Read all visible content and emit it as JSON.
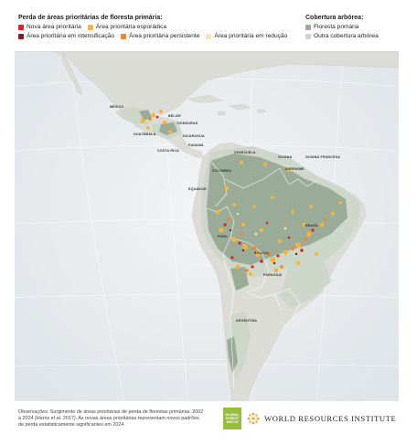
{
  "legend": {
    "loss_title": "Perda de áreas prioritárias de floresta primária:",
    "loss_items": [
      {
        "label": "Nova área prioritária",
        "color": "#e0202a"
      },
      {
        "label": "Área prioritária esporádica",
        "color": "#f5b53c"
      },
      {
        "label": "Área prioritária em intensificação",
        "color": "#8b1a1a"
      },
      {
        "label": "Área prioritária persistente",
        "color": "#f0852a"
      },
      {
        "label": "Área prioritária em redução",
        "color": "#fbe3b4"
      }
    ],
    "cover_title": "Cobertura arbórea:",
    "cover_items": [
      {
        "label": "Floresta primária",
        "color": "#9aab98"
      },
      {
        "label": "Outra cobertura arbórea",
        "color": "#ccd6c9"
      }
    ]
  },
  "map": {
    "labels": {
      "mexico": "MÉXICO",
      "belize": "BELIZE",
      "honduras": "HONDURAS",
      "guatemala": "GUATEMALA",
      "nicaragua": "NICARAGUA",
      "panama": "PANAMÁ",
      "costa_rica": "COSTA RICA",
      "venezuela": "VENEZUELA",
      "guiana": "GUIANA",
      "guiana_francesa": "GUIANA FRANCESA",
      "suriname": "SURINAME",
      "colombia": "COLÔMBIA",
      "equador": "EQUADOR",
      "brasil": "BRASIL",
      "peru": "PERU",
      "bolivia": "BOLÍVIA",
      "paraguai": "PARAGUAI",
      "argentina": "ARGENTINA"
    }
  },
  "footer": {
    "note_line1": "Observações: Surgimento de áreas prioritárias de perda de florestas primárias, 2002",
    "note_line2": "à 2024 (Harris et al. 2017). As novas áreas prioritárias representam novos padrões",
    "note_line3": "de perda estatisticamente significantes em 2024.",
    "gfw_line1": "GLOBAL",
    "gfw_line2": "FOREST",
    "gfw_line3": "WATCH",
    "wri": "WORLD RESOURCES INSTITUTE"
  },
  "colors": {
    "land": "#dcdcd6",
    "forest": "#9aab98",
    "other_tree": "#ccd6c9",
    "ocean": "#e8ecef"
  }
}
